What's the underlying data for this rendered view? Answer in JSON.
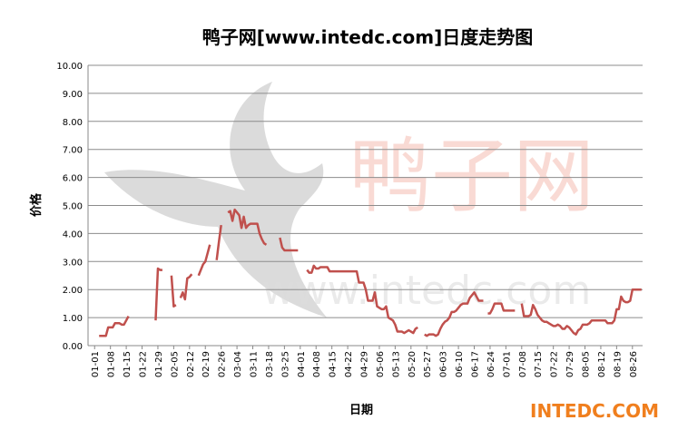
{
  "chart_data": {
    "type": "line",
    "title": "鸭子网[www.intedc.com]日度走势图",
    "x_label": "日期",
    "y_label": "价格",
    "watermark": "鸭子网",
    "watermark_url": "www.intedc.com",
    "brand": "INTEDC.COM",
    "ylim": [
      0,
      10
    ],
    "yticks": [
      {
        "value": 0,
        "label": "0.00"
      },
      {
        "value": 1,
        "label": "1.00"
      },
      {
        "value": 2,
        "label": "2.00"
      },
      {
        "value": 3,
        "label": "3.00"
      },
      {
        "value": 4,
        "label": "4.00"
      },
      {
        "value": 5,
        "label": "5.00"
      },
      {
        "value": 6,
        "label": "6.00"
      },
      {
        "value": 7,
        "label": "7.00"
      },
      {
        "value": 8,
        "label": "8.00"
      },
      {
        "value": 9,
        "label": "9.00"
      },
      {
        "value": 10,
        "label": "10.00"
      }
    ],
    "grid": true,
    "categories": [
      "01-01",
      null,
      null,
      null,
      null,
      null,
      null,
      "01-08",
      null,
      null,
      null,
      null,
      null,
      null,
      "01-15",
      null,
      null,
      null,
      null,
      null,
      null,
      "01-22",
      null,
      null,
      null,
      null,
      null,
      null,
      "01-29",
      null,
      null,
      null,
      null,
      null,
      null,
      "02-05",
      null,
      null,
      null,
      null,
      null,
      null,
      "02-12",
      null,
      null,
      null,
      null,
      null,
      null,
      "02-19",
      null,
      null,
      null,
      null,
      null,
      null,
      "02-26",
      null,
      null,
      null,
      null,
      null,
      null,
      "03-04",
      null,
      null,
      null,
      null,
      null,
      null,
      "03-11",
      null,
      null,
      null,
      null,
      null,
      null,
      "03-18",
      null,
      null,
      null,
      null,
      null,
      null,
      "03-25",
      null,
      null,
      null,
      null,
      null,
      null,
      "04-01",
      null,
      null,
      null,
      null,
      null,
      null,
      "04-08",
      null,
      null,
      null,
      null,
      null,
      null,
      "04-15",
      null,
      null,
      null,
      null,
      null,
      null,
      "04-22",
      null,
      null,
      null,
      null,
      null,
      null,
      "04-29",
      null,
      null,
      null,
      null,
      null,
      null,
      "05-06",
      null,
      null,
      null,
      null,
      null,
      null,
      "05-13",
      null,
      null,
      null,
      null,
      null,
      null,
      "05-20",
      null,
      null,
      null,
      null,
      null,
      null,
      "05-27",
      null,
      null,
      null,
      null,
      null,
      null,
      "06-03",
      null,
      null,
      null,
      null,
      null,
      null,
      "06-10",
      null,
      null,
      null,
      null,
      null,
      null,
      "06-17",
      null,
      null,
      null,
      null,
      null,
      null,
      "06-24",
      null,
      null,
      null,
      null,
      null,
      null,
      "07-01",
      null,
      null,
      null,
      null,
      null,
      null,
      "07-08",
      null,
      null,
      null,
      null,
      null,
      null,
      "07-15",
      null,
      null,
      null,
      null,
      null,
      null,
      "07-22",
      null,
      null,
      null,
      null,
      null,
      null,
      "07-29",
      null,
      null,
      null,
      null,
      null,
      null,
      "08-05",
      null,
      null,
      null,
      null,
      null,
      null,
      "08-12",
      null,
      null,
      null,
      null,
      null,
      null,
      "08-19",
      null,
      null,
      null,
      null,
      null,
      null,
      "08-26",
      null,
      null,
      null,
      null
    ],
    "series": [
      {
        "color": "#c0504d",
        "values": [
          null,
          null,
          0.35,
          0.35,
          0.35,
          0.35,
          0.65,
          0.65,
          0.65,
          0.8,
          0.8,
          0.8,
          0.75,
          0.75,
          0.9,
          1.05,
          null,
          null,
          null,
          null,
          null,
          null,
          null,
          null,
          null,
          null,
          null,
          0.9,
          2.75,
          2.7,
          2.7,
          null,
          null,
          null,
          2.5,
          1.4,
          1.45,
          null,
          1.7,
          1.9,
          1.65,
          2.4,
          2.45,
          2.55,
          null,
          null,
          2.5,
          2.7,
          2.9,
          3.0,
          3.3,
          3.6,
          null,
          null,
          3.05,
          3.7,
          4.3,
          null,
          null,
          4.75,
          4.8,
          4.45,
          4.85,
          4.75,
          4.65,
          4.2,
          4.6,
          4.2,
          4.3,
          4.35,
          4.35,
          4.35,
          4.35,
          4.0,
          3.8,
          3.65,
          3.6,
          null,
          null,
          null,
          null,
          null,
          3.85,
          3.5,
          3.4,
          3.4,
          3.4,
          3.4,
          3.4,
          3.4,
          3.4,
          null,
          null,
          null,
          2.7,
          2.6,
          2.6,
          2.85,
          2.75,
          2.75,
          2.8,
          2.8,
          2.8,
          2.8,
          2.65,
          2.65,
          2.65,
          2.65,
          2.65,
          2.65,
          2.65,
          2.65,
          2.65,
          2.65,
          2.65,
          2.65,
          2.65,
          2.25,
          2.25,
          2.25,
          2.0,
          1.6,
          1.6,
          1.6,
          1.9,
          1.4,
          1.35,
          1.3,
          1.3,
          1.4,
          1.0,
          0.95,
          0.9,
          0.75,
          0.5,
          0.5,
          0.5,
          0.45,
          0.5,
          0.55,
          0.5,
          0.45,
          0.6,
          0.65,
          null,
          null,
          0.4,
          0.35,
          0.4,
          0.4,
          0.4,
          0.35,
          0.4,
          0.6,
          0.75,
          0.85,
          0.9,
          1.0,
          1.2,
          1.2,
          1.25,
          1.35,
          1.45,
          1.5,
          1.5,
          1.5,
          1.7,
          1.8,
          1.9,
          1.75,
          1.6,
          1.6,
          1.6,
          null,
          1.15,
          1.15,
          1.3,
          1.5,
          1.5,
          1.5,
          1.5,
          1.25,
          1.25,
          1.25,
          1.25,
          1.25,
          1.25,
          null,
          null,
          1.5,
          1.05,
          1.05,
          1.05,
          1.1,
          1.45,
          1.3,
          1.1,
          1.0,
          0.9,
          0.85,
          0.85,
          0.8,
          0.75,
          0.7,
          0.7,
          0.75,
          0.7,
          0.6,
          0.6,
          0.7,
          0.65,
          0.55,
          0.45,
          0.4,
          0.55,
          0.6,
          0.75,
          0.75,
          0.75,
          0.8,
          0.9,
          0.9,
          0.9,
          0.9,
          0.9,
          0.9,
          0.9,
          0.8,
          0.8,
          0.8,
          0.9,
          1.3,
          1.3,
          1.75,
          1.6,
          1.55,
          1.55,
          1.6,
          2.0,
          2.0,
          2.0,
          2.0,
          2.0
        ]
      }
    ]
  }
}
